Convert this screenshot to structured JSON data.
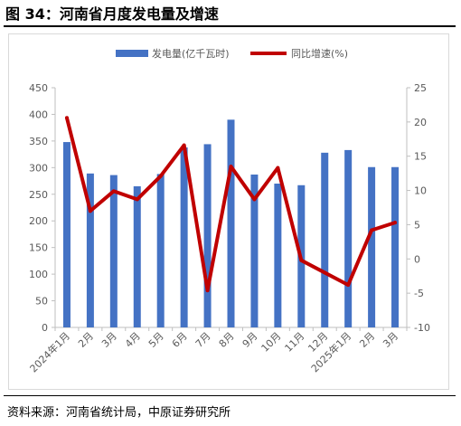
{
  "figure": {
    "title": "图 34：河南省月度发电量及增速",
    "source": "资料来源：河南省统计局，中原证券研究所"
  },
  "chart_data": {
    "type": "bar+line",
    "categories": [
      "2024年1月",
      "2月",
      "3月",
      "4月",
      "5月",
      "6月",
      "7月",
      "8月",
      "9月",
      "10月",
      "11月",
      "12月",
      "2025年1月",
      "2月",
      "3月"
    ],
    "series": [
      {
        "name": "发电量(亿千瓦时)",
        "type": "bar",
        "axis": "left",
        "color": "#4472c4",
        "values": [
          348,
          289,
          286,
          265,
          288,
          338,
          344,
          390,
          287,
          270,
          267,
          328,
          333,
          301,
          301
        ]
      },
      {
        "name": "同比增速(%)",
        "type": "line",
        "axis": "right",
        "color": "#c00000",
        "values": [
          20.6,
          7.0,
          9.9,
          8.7,
          12.1,
          16.6,
          -4.6,
          13.5,
          8.7,
          13.3,
          -0.2,
          -2.0,
          -3.8,
          4.2,
          5.3
        ]
      }
    ],
    "y_left": {
      "min": 0,
      "max": 450,
      "step": 50
    },
    "y_right": {
      "min": -10,
      "max": 25,
      "step": 5
    },
    "legend_position": "top",
    "grid": false
  }
}
